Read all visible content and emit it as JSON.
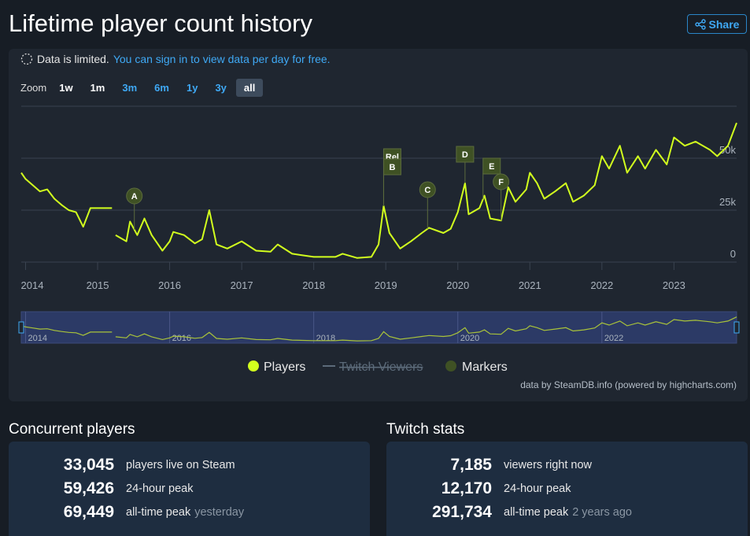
{
  "header": {
    "title": "Lifetime player count history",
    "share": "Share"
  },
  "notice": {
    "text": "Data is limited.",
    "link": "You can sign in to view data per day for free."
  },
  "zoom": {
    "label": "Zoom",
    "buttons": [
      "1w",
      "1m",
      "3m",
      "6m",
      "1y",
      "3y",
      "all"
    ],
    "selected_index": 6
  },
  "chart_data": {
    "type": "line",
    "x": [
      2013.94,
      2014.0,
      2014.1,
      2014.2,
      2014.3,
      2014.4,
      2014.5,
      2014.6,
      2014.7,
      2014.8,
      2014.9,
      2015.0,
      2015.2,
      2015.22,
      2015.25,
      2015.4,
      2015.45,
      2015.55,
      2015.65,
      2015.75,
      2015.9,
      2016.0,
      2016.05,
      2016.2,
      2016.35,
      2016.45,
      2016.55,
      2016.65,
      2016.8,
      2017.0,
      2017.2,
      2017.4,
      2017.5,
      2017.7,
      2018.0,
      2018.3,
      2018.4,
      2018.6,
      2018.8,
      2018.9,
      2018.97,
      2019.05,
      2019.2,
      2019.35,
      2019.5,
      2019.6,
      2019.8,
      2019.9,
      2020.0,
      2020.1,
      2020.15,
      2020.3,
      2020.37,
      2020.45,
      2020.6,
      2020.7,
      2020.8,
      2020.95,
      2021.0,
      2021.1,
      2021.2,
      2021.35,
      2021.5,
      2021.6,
      2021.75,
      2021.9,
      2022.0,
      2022.1,
      2022.25,
      2022.35,
      2022.5,
      2022.6,
      2022.75,
      2022.9,
      2023.0,
      2023.15,
      2023.3,
      2023.5,
      2023.6,
      2023.75,
      2023.87
    ],
    "series": [
      {
        "name": "Players",
        "color": "#d2ff1e",
        "values": [
          43000,
          40000,
          37000,
          34000,
          35000,
          30500,
          27500,
          25000,
          24000,
          17000,
          26000,
          26000,
          26000,
          null,
          13000,
          10000,
          19500,
          13000,
          21000,
          13000,
          5500,
          10000,
          14500,
          13000,
          9000,
          11000,
          25000,
          8500,
          6500,
          10000,
          5500,
          5000,
          8500,
          4000,
          2500,
          2500,
          4000,
          2000,
          2500,
          8500,
          27000,
          14000,
          6500,
          10000,
          14000,
          16500,
          14000,
          16000,
          24000,
          38000,
          23000,
          26000,
          32000,
          21000,
          20000,
          36000,
          29000,
          35000,
          43000,
          38000,
          30500,
          34000,
          38000,
          29000,
          32000,
          37000,
          51000,
          45000,
          56000,
          43000,
          51000,
          45000,
          54000,
          47000,
          60000,
          56000,
          58000,
          54000,
          51000,
          56000,
          67000
        ]
      }
    ],
    "legend": [
      {
        "name": "Players",
        "color": "#d2ff1e",
        "hidden": false
      },
      {
        "name": "Twitch Viewers",
        "color": "#5c6b7a",
        "hidden": true
      },
      {
        "name": "Markers",
        "color": "#3f5124",
        "hidden": false
      }
    ],
    "markers": [
      {
        "label": "A",
        "x": 2015.51,
        "shape": "circle"
      },
      {
        "label": "Rel",
        "x": 2018.97,
        "shape": "square"
      },
      {
        "label": "B",
        "x": 2018.97,
        "shape": "square"
      },
      {
        "label": "C",
        "x": 2019.58,
        "shape": "circle"
      },
      {
        "label": "D",
        "x": 2020.1,
        "shape": "square"
      },
      {
        "label": "E",
        "x": 2020.35,
        "shape": "square"
      },
      {
        "label": "F",
        "x": 2020.6,
        "shape": "circle"
      }
    ],
    "xlim": [
      2013.94,
      2023.87
    ],
    "xticks": [
      2014,
      2015,
      2016,
      2017,
      2018,
      2019,
      2020,
      2021,
      2022,
      2023
    ],
    "ylim": [
      0,
      75000
    ],
    "yticks": [
      {
        "value": 0,
        "label": "0"
      },
      {
        "value": 25000,
        "label": "25k"
      },
      {
        "value": 50000,
        "label": "50k"
      },
      75000
    ],
    "navigator_ticks": [
      2014,
      2016,
      2018,
      2020,
      2022
    ],
    "grid": true,
    "credit": "data by SteamDB.info (powered by highcharts.com)"
  },
  "stats": [
    {
      "title": "Concurrent players",
      "rows": [
        {
          "value": "33,045",
          "label": "players live on Steam"
        },
        {
          "value": "59,426",
          "label": "24-hour peak"
        },
        {
          "value": "69,449",
          "label": "all-time peak",
          "note": "yesterday"
        }
      ]
    },
    {
      "title": "Twitch stats",
      "rows": [
        {
          "value": "7,185",
          "label": "viewers right now"
        },
        {
          "value": "12,170",
          "label": "24-hour peak"
        },
        {
          "value": "291,734",
          "label": "all-time peak",
          "note": "2 years ago"
        }
      ]
    }
  ]
}
